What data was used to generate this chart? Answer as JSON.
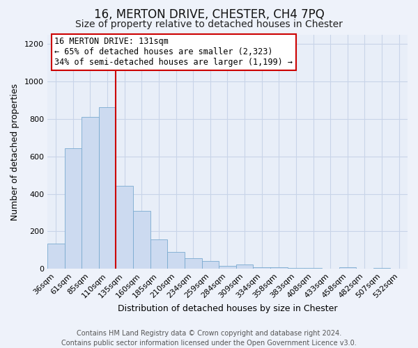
{
  "title": "16, MERTON DRIVE, CHESTER, CH4 7PQ",
  "subtitle": "Size of property relative to detached houses in Chester",
  "xlabel": "Distribution of detached houses by size in Chester",
  "ylabel": "Number of detached properties",
  "bin_labels": [
    "36sqm",
    "61sqm",
    "85sqm",
    "110sqm",
    "135sqm",
    "160sqm",
    "185sqm",
    "210sqm",
    "234sqm",
    "259sqm",
    "284sqm",
    "309sqm",
    "334sqm",
    "358sqm",
    "383sqm",
    "408sqm",
    "433sqm",
    "458sqm",
    "482sqm",
    "507sqm",
    "532sqm"
  ],
  "bar_heights": [
    135,
    645,
    810,
    865,
    445,
    310,
    158,
    90,
    55,
    42,
    15,
    22,
    8,
    10,
    4,
    4,
    0,
    10,
    0,
    4,
    0
  ],
  "bar_color": "#ccdaf0",
  "bar_edge_color": "#7aaad0",
  "vline_color": "#cc0000",
  "vline_x_index": 4,
  "ylim": [
    0,
    1250
  ],
  "yticks": [
    0,
    200,
    400,
    600,
    800,
    1000,
    1200
  ],
  "annotation_text": "16 MERTON DRIVE: 131sqm\n← 65% of detached houses are smaller (2,323)\n34% of semi-detached houses are larger (1,199) →",
  "footer_line1": "Contains HM Land Registry data © Crown copyright and database right 2024.",
  "footer_line2": "Contains public sector information licensed under the Open Government Licence v3.0.",
  "background_color": "#eef2fa",
  "plot_bg_color": "#e8eef8",
  "grid_color": "#c8d4e8",
  "annotation_box_color": "#ffffff",
  "annotation_box_edge": "#cc0000",
  "title_fontsize": 12,
  "subtitle_fontsize": 10,
  "axis_label_fontsize": 9,
  "tick_fontsize": 8,
  "annotation_fontsize": 8.5,
  "footer_fontsize": 7
}
